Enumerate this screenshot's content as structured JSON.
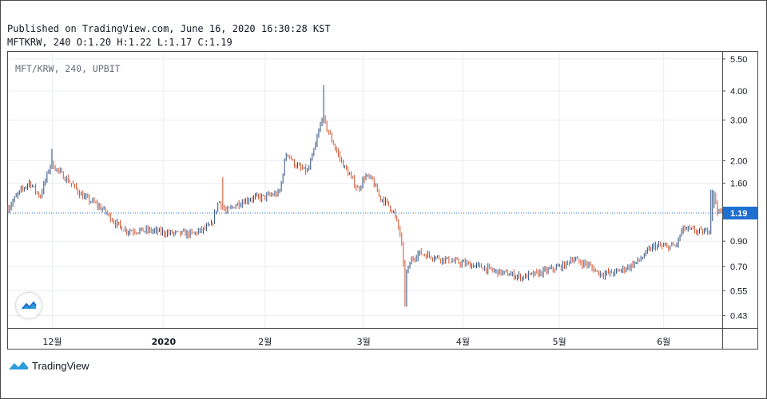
{
  "header": {
    "published": "Published on TradingView.com, June 16, 2020 16:30:28 KST",
    "ohlc": "MFTKRW, 240 O:1.20 H:1.22 L:1.17 C:1.19"
  },
  "pane_label": "MFT/KRW, 240, UPBIT",
  "branding": {
    "name": "TradingView",
    "icon": "tradingview-cloud-icon"
  },
  "colors": {
    "accent": "#1e6fd0",
    "up_candle": "#2a4a7a",
    "down_candle": "#d0502c",
    "grid": "#e8ecf1",
    "last_price_line": "#1e6fd0"
  },
  "chart_data": {
    "type": "candlestick",
    "symbol": "MFT/KRW",
    "interval": "240",
    "exchange": "UPBIT",
    "y_scale": "log",
    "y_ticks": [
      5.5,
      4.0,
      3.0,
      2.0,
      1.6,
      0.9,
      0.7,
      0.55,
      0.43
    ],
    "y_tick_labels": [
      "5.50",
      "4.00",
      "3.00",
      "2.00",
      "1.60",
      "0.90",
      "0.70",
      "0.55",
      "0.43"
    ],
    "ylim": [
      0.38,
      5.9
    ],
    "last_price": 1.19,
    "last_price_label": "1.19",
    "x_ticks": [
      {
        "label": "12월",
        "t": 0.062
      },
      {
        "label": "2020",
        "t": 0.218,
        "bold": true
      },
      {
        "label": "2월",
        "t": 0.36
      },
      {
        "label": "3월",
        "t": 0.498
      },
      {
        "label": "4월",
        "t": 0.637
      },
      {
        "label": "5월",
        "t": 0.772
      },
      {
        "label": "6월",
        "t": 0.918
      }
    ],
    "price_path": [
      [
        0.0,
        1.25
      ],
      [
        0.015,
        1.45
      ],
      [
        0.03,
        1.62
      ],
      [
        0.045,
        1.4
      ],
      [
        0.06,
        1.95
      ],
      [
        0.075,
        1.75
      ],
      [
        0.09,
        1.58
      ],
      [
        0.105,
        1.4
      ],
      [
        0.12,
        1.32
      ],
      [
        0.135,
        1.22
      ],
      [
        0.15,
        1.08
      ],
      [
        0.165,
        1.0
      ],
      [
        0.18,
        1.0
      ],
      [
        0.2,
        1.0
      ],
      [
        0.22,
        0.98
      ],
      [
        0.24,
        0.97
      ],
      [
        0.26,
        0.97
      ],
      [
        0.285,
        1.05
      ],
      [
        0.295,
        1.35
      ],
      [
        0.305,
        1.2
      ],
      [
        0.32,
        1.3
      ],
      [
        0.34,
        1.38
      ],
      [
        0.36,
        1.4
      ],
      [
        0.38,
        1.45
      ],
      [
        0.39,
        2.2
      ],
      [
        0.4,
        1.95
      ],
      [
        0.41,
        1.85
      ],
      [
        0.42,
        1.8
      ],
      [
        0.43,
        2.3
      ],
      [
        0.44,
        3.1
      ],
      [
        0.45,
        2.6
      ],
      [
        0.46,
        2.2
      ],
      [
        0.47,
        1.9
      ],
      [
        0.48,
        1.7
      ],
      [
        0.49,
        1.5
      ],
      [
        0.5,
        1.72
      ],
      [
        0.51,
        1.65
      ],
      [
        0.52,
        1.4
      ],
      [
        0.53,
        1.32
      ],
      [
        0.54,
        1.2
      ],
      [
        0.55,
        0.95
      ],
      [
        0.555,
        0.62
      ],
      [
        0.565,
        0.75
      ],
      [
        0.575,
        0.8
      ],
      [
        0.59,
        0.78
      ],
      [
        0.605,
        0.76
      ],
      [
        0.62,
        0.74
      ],
      [
        0.64,
        0.72
      ],
      [
        0.66,
        0.7
      ],
      [
        0.68,
        0.67
      ],
      [
        0.7,
        0.65
      ],
      [
        0.72,
        0.63
      ],
      [
        0.74,
        0.65
      ],
      [
        0.76,
        0.68
      ],
      [
        0.78,
        0.71
      ],
      [
        0.79,
        0.76
      ],
      [
        0.8,
        0.73
      ],
      [
        0.81,
        0.72
      ],
      [
        0.82,
        0.68
      ],
      [
        0.83,
        0.65
      ],
      [
        0.85,
        0.66
      ],
      [
        0.87,
        0.7
      ],
      [
        0.885,
        0.75
      ],
      [
        0.895,
        0.81
      ],
      [
        0.905,
        0.86
      ],
      [
        0.92,
        0.85
      ],
      [
        0.935,
        0.86
      ],
      [
        0.945,
        1.02
      ],
      [
        0.96,
        1.0
      ],
      [
        0.975,
        0.98
      ],
      [
        0.982,
        1.02
      ],
      [
        0.988,
        1.45
      ],
      [
        0.994,
        1.2
      ],
      [
        1.0,
        1.19
      ]
    ],
    "spikes": [
      {
        "t": 0.062,
        "high": 2.25
      },
      {
        "t": 0.3,
        "high": 1.7
      },
      {
        "t": 0.442,
        "high": 4.25
      },
      {
        "t": 0.557,
        "low": 0.47
      },
      {
        "t": 0.985,
        "high": 1.5
      }
    ]
  }
}
